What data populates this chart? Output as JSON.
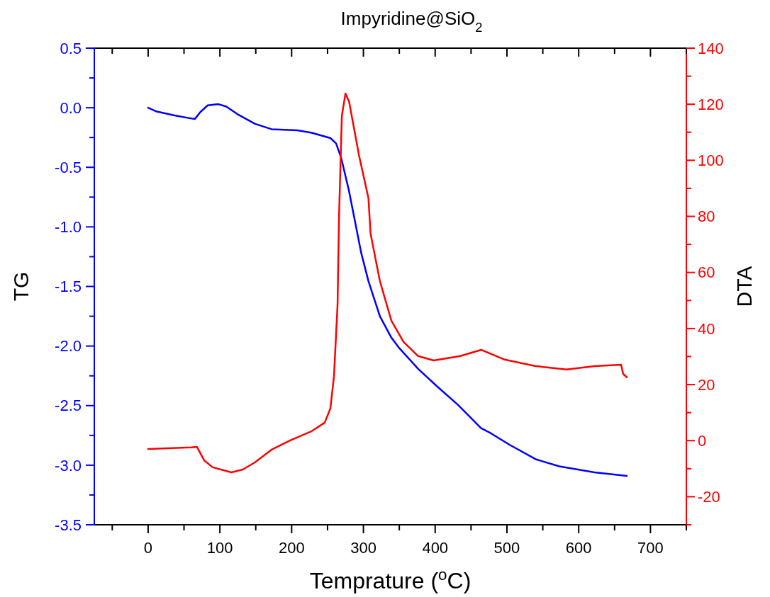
{
  "chart_data": {
    "type": "line",
    "title": "Impyridine@SiO$_{2}$",
    "xlabel": "Temprature ($^{o}$C)",
    "ylabel": "TG",
    "y2label": "DTA",
    "xlim": [
      -75,
      750
    ],
    "xticks": [
      {
        "value": -50,
        "label": null
      },
      0,
      {
        "value": 50,
        "label": null
      },
      100,
      {
        "value": 150,
        "label": null
      },
      200,
      {
        "value": 250,
        "label": null
      },
      300,
      {
        "value": 350,
        "label": null
      },
      400,
      {
        "value": 450,
        "label": null
      },
      500,
      {
        "value": 550,
        "label": null
      },
      600,
      {
        "value": 650,
        "label": null
      },
      700,
      {
        "value": 750,
        "label": null
      }
    ],
    "ylim": [
      -3.5,
      0.5
    ],
    "yticks": [
      {
        "value": -3.5,
        "label": "-3.5"
      },
      {
        "value": -3.25,
        "label": null
      },
      {
        "value": -3,
        "label": "-3.0"
      },
      {
        "value": -2.75,
        "label": null
      },
      {
        "value": -2.5,
        "label": "-2.5"
      },
      {
        "value": -2.25,
        "label": null
      },
      {
        "value": -2,
        "label": "-2.0"
      },
      {
        "value": -1.75,
        "label": null
      },
      {
        "value": -1.5,
        "label": "-1.5"
      },
      {
        "value": -1.25,
        "label": null
      },
      {
        "value": -1,
        "label": "-1.0"
      },
      {
        "value": -0.75,
        "label": null
      },
      {
        "value": -0.5,
        "label": "-0.5"
      },
      {
        "value": -0.25,
        "label": null
      },
      {
        "value": 0,
        "label": "0.0"
      },
      {
        "value": 0.25,
        "label": null
      },
      {
        "value": 0.5,
        "label": "0.5"
      }
    ],
    "y2lim": [
      -30,
      140
    ],
    "y2ticks": [
      {
        "value": -30,
        "label": null
      },
      -20,
      {
        "value": -10,
        "label": null
      },
      0,
      {
        "value": 10,
        "label": null
      },
      20,
      {
        "value": 30,
        "label": null
      },
      40,
      {
        "value": 50,
        "label": null
      },
      60,
      {
        "value": 70,
        "label": null
      },
      80,
      {
        "value": 90,
        "label": null
      },
      100,
      {
        "value": 110,
        "label": null
      },
      120,
      {
        "value": 130,
        "label": null
      },
      140
    ],
    "grid": false,
    "marker": "none",
    "line_style": "solid",
    "series": [
      {
        "color": "#0000ff",
        "x": [
          0,
          11,
          37,
          65,
          73,
          83,
          98,
          109,
          126,
          149,
          172,
          208,
          228,
          254,
          262,
          269,
          280,
          297,
          307,
          323,
          339,
          349,
          376,
          402,
          432,
          464,
          477,
          504,
          540,
          573,
          622,
          667
        ],
        "values": [
          0,
          -0.03,
          -0.065,
          -0.095,
          -0.035,
          0.02,
          0.03,
          0.01,
          -0.06,
          -0.135,
          -0.18,
          -0.19,
          -0.21,
          -0.255,
          -0.3,
          -0.42,
          -0.7,
          -1.22,
          -1.455,
          -1.75,
          -1.93,
          -2.01,
          -2.19,
          -2.335,
          -2.495,
          -2.69,
          -2.73,
          -2.83,
          -2.95,
          -3.01,
          -3.06,
          -3.09
        ]
      },
      {
        "color": "#ff0000",
        "axis": "y2",
        "x": [
          0,
          60,
          68,
          78,
          90,
          116,
          132,
          149,
          172,
          198,
          228,
          246,
          254,
          259,
          264,
          266,
          270,
          275,
          280,
          294,
          307,
          310,
          323,
          339,
          356,
          376,
          398,
          435,
          464,
          497,
          540,
          583,
          622,
          659,
          662,
          667
        ],
        "values": [
          -3,
          -2.4,
          -2.2,
          -7,
          -9.5,
          -11.3,
          -10.3,
          -7.7,
          -3.2,
          0.1,
          3.4,
          6.4,
          11.5,
          23,
          48.6,
          79.6,
          116,
          123.8,
          121,
          101.6,
          86.5,
          73.8,
          56.9,
          42.8,
          35.2,
          30.2,
          28.6,
          30.2,
          32.4,
          28.9,
          26.6,
          25.4,
          26.6,
          27.1,
          23.8,
          22.6
        ]
      }
    ]
  }
}
